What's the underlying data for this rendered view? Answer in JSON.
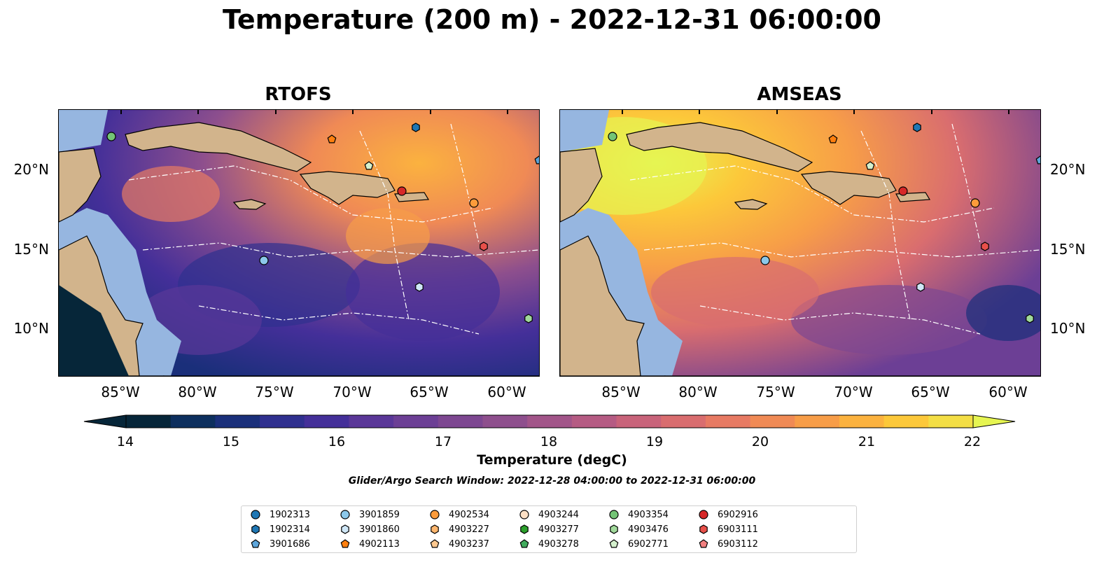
{
  "title": "Temperature (200 m) - 2022-12-31 06:00:00",
  "panels": [
    {
      "title": "RTOFS",
      "style": "rtofs"
    },
    {
      "title": "AMSEAS",
      "style": "amseas"
    }
  ],
  "map_axes": {
    "lat_labels": [
      "20°N",
      "15°N",
      "10°N"
    ],
    "lon_labels": [
      "85°W",
      "80°W",
      "75°W",
      "70°W",
      "65°W",
      "60°W"
    ]
  },
  "colorbar": {
    "label": "Temperature (degC)",
    "ticks": [
      "14",
      "15",
      "16",
      "17",
      "18",
      "19",
      "20",
      "21",
      "22"
    ],
    "min": 14,
    "max": 22,
    "step": 0.5,
    "extend": "both",
    "colormap": "thermal",
    "colors": [
      "#062639",
      "#0d2f5e",
      "#1a2f7a",
      "#2f308f",
      "#442f99",
      "#5a3798",
      "#6c3f95",
      "#7d4791",
      "#8e4f8d",
      "#a25589",
      "#b55b83",
      "#c8637a",
      "#d96d6f",
      "#e77a63",
      "#f08a55",
      "#f79d48",
      "#fbb23f",
      "#fcc83a",
      "#f3de45"
    ],
    "extend_max_color": "#e6f552",
    "land_color": "#d2b48c",
    "shallow_water_color": "#96b6e0"
  },
  "search_window": "Glider/Argo Search Window: 2022-12-28 04:00:00 to 2022-12-31 06:00:00",
  "floats": [
    {
      "id": "1902313",
      "marker": "circle",
      "color": "#1f77b4"
    },
    {
      "id": "1902314",
      "marker": "hexagon",
      "color": "#1f77b4"
    },
    {
      "id": "3901686",
      "marker": "pentagon",
      "color": "#5da5da"
    },
    {
      "id": "3901859",
      "marker": "circle",
      "color": "#8cc8ea"
    },
    {
      "id": "3901860",
      "marker": "hexagon",
      "color": "#cfe7f7"
    },
    {
      "id": "4902113",
      "marker": "pentagon",
      "color": "#ff7f0e"
    },
    {
      "id": "4902534",
      "marker": "circle",
      "color": "#fd9b3a"
    },
    {
      "id": "4903227",
      "marker": "hexagon",
      "color": "#fdb66e"
    },
    {
      "id": "4903237",
      "marker": "pentagon",
      "color": "#fdc88f"
    },
    {
      "id": "4903244",
      "marker": "circle",
      "color": "#fde0c5"
    },
    {
      "id": "4903277",
      "marker": "hexagon",
      "color": "#2ca02c"
    },
    {
      "id": "4903278",
      "marker": "pentagon",
      "color": "#41ab5d"
    },
    {
      "id": "4903354",
      "marker": "circle",
      "color": "#74c476"
    },
    {
      "id": "4903476",
      "marker": "hexagon",
      "color": "#a1d99b"
    },
    {
      "id": "6902771",
      "marker": "pentagon",
      "color": "#d4f0cd"
    },
    {
      "id": "6902916",
      "marker": "circle",
      "color": "#d62728"
    },
    {
      "id": "6903111",
      "marker": "hexagon",
      "color": "#e8504a"
    },
    {
      "id": "6903112",
      "marker": "pentagon",
      "color": "#f28080"
    }
  ]
}
